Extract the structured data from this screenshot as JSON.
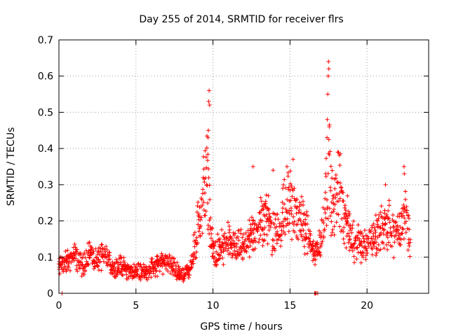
{
  "chart_data": {
    "type": "scatter",
    "title": "Day 255 of 2014, SRMTID for receiver flrs",
    "xlabel": "GPS time / hours",
    "ylabel": "SRMTID / TECUs",
    "xlim": [
      0,
      24
    ],
    "ylim": [
      0,
      0.7
    ],
    "xticks": [
      0,
      5,
      10,
      15,
      20
    ],
    "yticks": [
      0,
      0.1,
      0.2,
      0.3,
      0.4,
      0.5,
      0.6,
      0.7
    ],
    "grid": true,
    "marker": "+",
    "color": "#ff0000",
    "trend": [
      [
        0.0,
        0.07
      ],
      [
        0.5,
        0.09
      ],
      [
        1.0,
        0.1
      ],
      [
        1.5,
        0.08
      ],
      [
        2.0,
        0.11
      ],
      [
        2.5,
        0.09
      ],
      [
        3.0,
        0.1
      ],
      [
        3.5,
        0.07
      ],
      [
        4.0,
        0.08
      ],
      [
        4.5,
        0.06
      ],
      [
        5.0,
        0.06
      ],
      [
        5.5,
        0.06
      ],
      [
        6.0,
        0.07
      ],
      [
        6.5,
        0.08
      ],
      [
        7.0,
        0.09
      ],
      [
        7.5,
        0.07
      ],
      [
        8.0,
        0.05
      ],
      [
        8.5,
        0.06
      ],
      [
        9.0,
        0.18
      ],
      [
        9.3,
        0.26
      ],
      [
        9.6,
        0.33
      ],
      [
        9.8,
        0.2
      ],
      [
        10.0,
        0.11
      ],
      [
        10.5,
        0.12
      ],
      [
        11.0,
        0.14
      ],
      [
        11.5,
        0.12
      ],
      [
        12.0,
        0.13
      ],
      [
        12.5,
        0.15
      ],
      [
        13.0,
        0.19
      ],
      [
        13.5,
        0.22
      ],
      [
        14.0,
        0.16
      ],
      [
        14.5,
        0.22
      ],
      [
        15.0,
        0.25
      ],
      [
        15.5,
        0.2
      ],
      [
        16.0,
        0.18
      ],
      [
        16.5,
        0.11
      ],
      [
        17.0,
        0.14
      ],
      [
        17.5,
        0.35
      ],
      [
        17.8,
        0.22
      ],
      [
        18.2,
        0.3
      ],
      [
        18.5,
        0.22
      ],
      [
        19.0,
        0.15
      ],
      [
        19.5,
        0.14
      ],
      [
        20.0,
        0.13
      ],
      [
        20.5,
        0.15
      ],
      [
        21.0,
        0.2
      ],
      [
        21.5,
        0.18
      ],
      [
        22.0,
        0.16
      ],
      [
        22.5,
        0.22
      ],
      [
        22.8,
        0.14
      ]
    ],
    "peaks": [
      [
        9.75,
        0.56
      ],
      [
        9.72,
        0.53
      ],
      [
        9.78,
        0.52
      ],
      [
        9.7,
        0.45
      ],
      [
        9.68,
        0.43
      ],
      [
        17.5,
        0.64
      ],
      [
        17.52,
        0.62
      ],
      [
        17.48,
        0.6
      ],
      [
        17.45,
        0.55
      ],
      [
        17.42,
        0.48
      ],
      [
        17.4,
        0.43
      ],
      [
        17.55,
        0.46
      ],
      [
        18.1,
        0.39
      ],
      [
        22.4,
        0.35
      ],
      [
        22.42,
        0.33
      ],
      [
        21.2,
        0.3
      ],
      [
        15.2,
        0.37
      ],
      [
        14.8,
        0.35
      ],
      [
        13.9,
        0.34
      ],
      [
        12.6,
        0.35
      ]
    ],
    "outliers": [
      [
        0.2,
        0.0
      ],
      [
        16.6,
        0.0
      ],
      [
        16.65,
        0.0
      ],
      [
        16.7,
        0.0
      ],
      [
        16.8,
        0.0
      ]
    ]
  }
}
